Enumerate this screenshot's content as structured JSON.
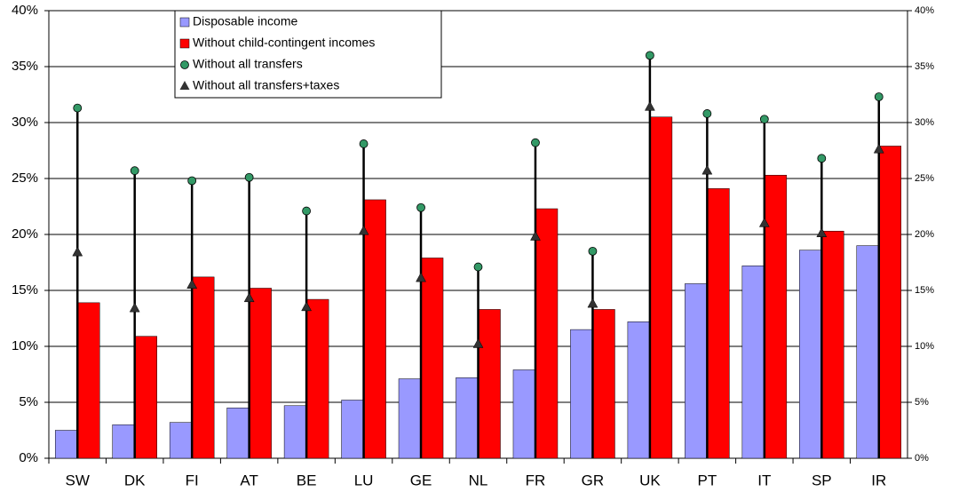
{
  "chart_data": {
    "type": "bar",
    "categories": [
      "SW",
      "DK",
      "FI",
      "AT",
      "BE",
      "LU",
      "GE",
      "NL",
      "FR",
      "GR",
      "UK",
      "PT",
      "IT",
      "SP",
      "IR"
    ],
    "series": [
      {
        "name": "Disposable income",
        "color": "#9999ff",
        "type": "bar",
        "values": [
          2.5,
          3.0,
          3.2,
          4.5,
          4.7,
          5.2,
          7.1,
          7.2,
          7.9,
          11.5,
          12.2,
          15.6,
          17.2,
          18.6,
          19.0
        ]
      },
      {
        "name": "Without child-contingent incomes",
        "color": "#ff0000",
        "type": "bar",
        "values": [
          13.9,
          10.9,
          16.2,
          15.2,
          14.2,
          23.1,
          17.9,
          13.3,
          22.3,
          13.3,
          30.5,
          24.1,
          25.3,
          20.3,
          27.9
        ]
      },
      {
        "name": "Without all transfers",
        "color": "#339966",
        "type": "scatter",
        "marker": "circle",
        "values": [
          31.3,
          25.7,
          24.8,
          25.1,
          22.1,
          28.1,
          22.4,
          17.1,
          28.2,
          18.5,
          36.0,
          30.8,
          30.3,
          26.8,
          32.3
        ]
      },
      {
        "name": "Without all transfers+taxes",
        "color": "#333333",
        "type": "scatter",
        "marker": "triangle",
        "values": [
          18.4,
          13.4,
          15.5,
          14.3,
          13.5,
          20.3,
          16.1,
          10.2,
          19.8,
          13.8,
          31.4,
          25.7,
          21.0,
          20.1,
          27.6
        ]
      }
    ],
    "ylim": [
      0,
      40
    ],
    "yticks": [
      {
        "value": 0,
        "label": "0%"
      },
      {
        "value": 5,
        "label": "5%"
      },
      {
        "value": 10,
        "label": "10%"
      },
      {
        "value": 15,
        "label": "15%"
      },
      {
        "value": 20,
        "label": "20%"
      },
      {
        "value": 25,
        "label": "25%"
      },
      {
        "value": 30,
        "label": "30%"
      },
      {
        "value": 35,
        "label": "35%"
      },
      {
        "value": 40,
        "label": "40%"
      }
    ],
    "y2lim": [
      0,
      40
    ],
    "y2ticks": [
      {
        "value": 0,
        "label": "0%"
      },
      {
        "value": 5,
        "label": "5%"
      },
      {
        "value": 10,
        "label": "10%"
      },
      {
        "value": 15,
        "label": "15%"
      },
      {
        "value": 20,
        "label": "20%"
      },
      {
        "value": 25,
        "label": "25%"
      },
      {
        "value": 30,
        "label": "30%"
      },
      {
        "value": 35,
        "label": "35%"
      },
      {
        "value": 40,
        "label": "40%"
      }
    ],
    "grid": true
  }
}
